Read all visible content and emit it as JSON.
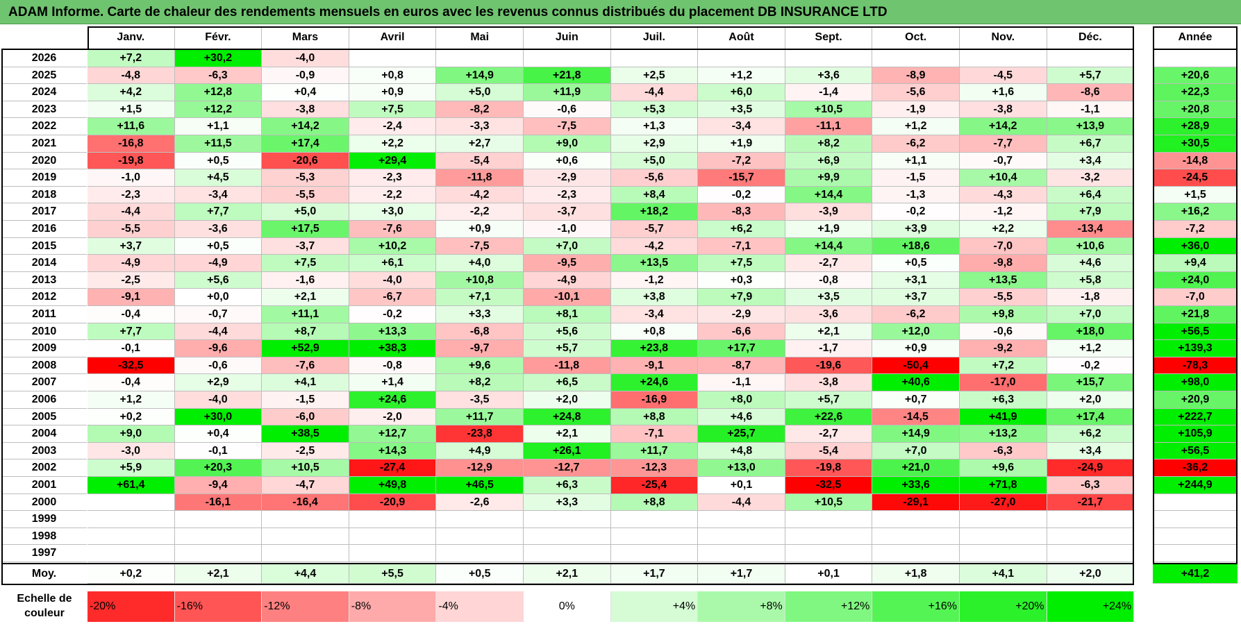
{
  "title": "ADAM Informe. Carte de chaleur des rendements mensuels en euros avec les revenus connus distribués du placement DB INSURANCE LTD",
  "chart_data": {
    "type": "heatmap",
    "title": "ADAM Informe. Carte de chaleur des rendements mensuels en euros avec les revenus connus distribués du placement DB INSURANCE LTD",
    "months": [
      "Janv.",
      "Févr.",
      "Mars",
      "Avril",
      "Mai",
      "Juin",
      "Juil.",
      "Août",
      "Sept.",
      "Oct.",
      "Nov.",
      "Déc."
    ],
    "year_header": "Année",
    "rows": [
      {
        "year": "2026",
        "values": [
          "+7,2",
          "+30,2",
          "-4,0",
          "",
          "",
          "",
          "",
          "",
          "",
          "",
          "",
          ""
        ],
        "annual": ""
      },
      {
        "year": "2025",
        "values": [
          "-4,8",
          "-6,3",
          "-0,9",
          "+0,8",
          "+14,9",
          "+21,8",
          "+2,5",
          "+1,2",
          "+3,6",
          "-8,9",
          "-4,5",
          "+5,7"
        ],
        "annual": "+20,6"
      },
      {
        "year": "2024",
        "values": [
          "+4,2",
          "+12,8",
          "+0,4",
          "+0,9",
          "+5,0",
          "+11,9",
          "-4,4",
          "+6,0",
          "-1,4",
          "-5,6",
          "+1,6",
          "-8,6"
        ],
        "annual": "+22,3"
      },
      {
        "year": "2023",
        "values": [
          "+1,5",
          "+12,2",
          "-3,8",
          "+7,5",
          "-8,2",
          "-0,6",
          "+5,3",
          "+3,5",
          "+10,5",
          "-1,9",
          "-3,8",
          "-1,1"
        ],
        "annual": "+20,8"
      },
      {
        "year": "2022",
        "values": [
          "+11,6",
          "+1,1",
          "+14,2",
          "-2,4",
          "-3,3",
          "-7,5",
          "+1,3",
          "-3,4",
          "-11,1",
          "+1,2",
          "+14,2",
          "+13,9"
        ],
        "annual": "+28,9"
      },
      {
        "year": "2021",
        "values": [
          "-16,8",
          "+11,5",
          "+17,4",
          "+2,2",
          "+2,7",
          "+9,0",
          "+2,9",
          "+1,9",
          "+8,2",
          "-6,2",
          "-7,7",
          "+6,7"
        ],
        "annual": "+30,5"
      },
      {
        "year": "2020",
        "values": [
          "-19,8",
          "+0,5",
          "-20,6",
          "+29,4",
          "-5,4",
          "+0,6",
          "+5,0",
          "-7,2",
          "+6,9",
          "+1,1",
          "-0,7",
          "+3,4"
        ],
        "annual": "-14,8"
      },
      {
        "year": "2019",
        "values": [
          "-1,0",
          "+4,5",
          "-5,3",
          "-2,3",
          "-11,8",
          "-2,9",
          "-5,6",
          "-15,7",
          "+9,9",
          "-1,5",
          "+10,4",
          "-3,2"
        ],
        "annual": "-24,5"
      },
      {
        "year": "2018",
        "values": [
          "-2,3",
          "-3,4",
          "-5,5",
          "-2,2",
          "-4,2",
          "-2,3",
          "+8,4",
          "-0,2",
          "+14,4",
          "-1,3",
          "-4,3",
          "+6,4"
        ],
        "annual": "+1,5"
      },
      {
        "year": "2017",
        "values": [
          "-4,4",
          "+7,7",
          "+5,0",
          "+3,0",
          "-2,2",
          "-3,7",
          "+18,2",
          "-8,3",
          "-3,9",
          "-0,2",
          "-1,2",
          "+7,9"
        ],
        "annual": "+16,2"
      },
      {
        "year": "2016",
        "values": [
          "-5,5",
          "-3,6",
          "+17,5",
          "-7,6",
          "+0,9",
          "-1,0",
          "-5,7",
          "+6,2",
          "+1,9",
          "+3,9",
          "+2,2",
          "-13,4"
        ],
        "annual": "-7,2"
      },
      {
        "year": "2015",
        "values": [
          "+3,7",
          "+0,5",
          "-3,7",
          "+10,2",
          "-7,5",
          "+7,0",
          "-4,2",
          "-7,1",
          "+14,4",
          "+18,6",
          "-7,0",
          "+10,6"
        ],
        "annual": "+36,0"
      },
      {
        "year": "2014",
        "values": [
          "-4,9",
          "-4,9",
          "+7,5",
          "+6,1",
          "+4,0",
          "-9,5",
          "+13,5",
          "+7,5",
          "-2,7",
          "+0,5",
          "-9,8",
          "+4,6"
        ],
        "annual": "+9,4"
      },
      {
        "year": "2013",
        "values": [
          "-2,5",
          "+5,6",
          "-1,6",
          "-4,0",
          "+10,8",
          "-4,9",
          "-1,2",
          "+0,3",
          "-0,8",
          "+3,1",
          "+13,5",
          "+5,8"
        ],
        "annual": "+24,0"
      },
      {
        "year": "2012",
        "values": [
          "-9,1",
          "+0,0",
          "+2,1",
          "-6,7",
          "+7,1",
          "-10,1",
          "+3,8",
          "+7,9",
          "+3,5",
          "+3,7",
          "-5,5",
          "-1,8"
        ],
        "annual": "-7,0"
      },
      {
        "year": "2011",
        "values": [
          "-0,4",
          "-0,7",
          "+11,1",
          "-0,2",
          "+3,3",
          "+8,1",
          "-3,4",
          "-2,9",
          "-3,6",
          "-6,2",
          "+9,8",
          "+7,0"
        ],
        "annual": "+21,8"
      },
      {
        "year": "2010",
        "values": [
          "+7,7",
          "-4,4",
          "+8,7",
          "+13,3",
          "-6,8",
          "+5,6",
          "+0,8",
          "-6,6",
          "+2,1",
          "+12,0",
          "-0,6",
          "+18,0"
        ],
        "annual": "+56,5"
      },
      {
        "year": "2009",
        "values": [
          "-0,1",
          "-9,6",
          "+52,9",
          "+38,3",
          "-9,7",
          "+5,7",
          "+23,8",
          "+17,7",
          "-1,7",
          "+0,9",
          "-9,2",
          "+1,2"
        ],
        "annual": "+139,3"
      },
      {
        "year": "2008",
        "values": [
          "-32,5",
          "-0,6",
          "-7,6",
          "-0,8",
          "+9,6",
          "-11,8",
          "-9,1",
          "-8,7",
          "-19,6",
          "-50,4",
          "+7,2",
          "-0,2"
        ],
        "annual": "-78,3"
      },
      {
        "year": "2007",
        "values": [
          "-0,4",
          "+2,9",
          "+4,1",
          "+1,4",
          "+8,2",
          "+6,5",
          "+24,6",
          "-1,1",
          "-3,8",
          "+40,6",
          "-17,0",
          "+15,7"
        ],
        "annual": "+98,0"
      },
      {
        "year": "2006",
        "values": [
          "+1,2",
          "-4,0",
          "-1,5",
          "+24,6",
          "-3,5",
          "+2,0",
          "-16,9",
          "+8,0",
          "+5,7",
          "+0,7",
          "+6,3",
          "+2,0"
        ],
        "annual": "+20,9"
      },
      {
        "year": "2005",
        "values": [
          "+0,2",
          "+30,0",
          "-6,0",
          "-2,0",
          "+11,7",
          "+24,8",
          "+8,8",
          "+4,6",
          "+22,6",
          "-14,5",
          "+41,9",
          "+17,4"
        ],
        "annual": "+222,7"
      },
      {
        "year": "2004",
        "values": [
          "+9,0",
          "+0,4",
          "+38,5",
          "+12,7",
          "-23,8",
          "+2,1",
          "-7,1",
          "+25,7",
          "-2,7",
          "+14,9",
          "+13,2",
          "+6,2"
        ],
        "annual": "+105,9"
      },
      {
        "year": "2003",
        "values": [
          "-3,0",
          "-0,1",
          "-2,5",
          "+14,3",
          "+4,9",
          "+26,1",
          "+11,7",
          "+4,8",
          "-5,4",
          "+7,0",
          "-6,3",
          "+3,4"
        ],
        "annual": "+56,5"
      },
      {
        "year": "2002",
        "values": [
          "+5,9",
          "+20,3",
          "+10,5",
          "-27,4",
          "-12,9",
          "-12,7",
          "-12,3",
          "+13,0",
          "-19,8",
          "+21,0",
          "+9,6",
          "-24,9"
        ],
        "annual": "-36,2"
      },
      {
        "year": "2001",
        "values": [
          "+61,4",
          "-9,4",
          "-4,7",
          "+49,8",
          "+46,5",
          "+6,3",
          "-25,4",
          "+0,1",
          "-32,5",
          "+33,6",
          "+71,8",
          "-6,3"
        ],
        "annual": "+244,9"
      },
      {
        "year": "2000",
        "values": [
          "",
          "-16,1",
          "-16,4",
          "-20,9",
          "-2,6",
          "+3,3",
          "+8,8",
          "-4,4",
          "+10,5",
          "-29,1",
          "-27,0",
          "-21,7"
        ],
        "annual": ""
      },
      {
        "year": "1999",
        "values": [
          "",
          "",
          "",
          "",
          "",
          "",
          "",
          "",
          "",
          "",
          "",
          ""
        ],
        "annual": ""
      },
      {
        "year": "1998",
        "values": [
          "",
          "",
          "",
          "",
          "",
          "",
          "",
          "",
          "",
          "",
          "",
          ""
        ],
        "annual": ""
      },
      {
        "year": "1997",
        "values": [
          "",
          "",
          "",
          "",
          "",
          "",
          "",
          "",
          "",
          "",
          "",
          ""
        ],
        "annual": ""
      }
    ],
    "average": {
      "label": "Moy.",
      "values": [
        "+0,2",
        "+2,1",
        "+4,4",
        "+5,5",
        "+0,5",
        "+2,1",
        "+1,7",
        "+1,7",
        "+0,1",
        "+1,8",
        "+4,1",
        "+2,0"
      ],
      "annual": "+41,2"
    },
    "color_scale": {
      "label": "Echelle de couleur",
      "steps": [
        {
          "label": "-20%",
          "value": -20
        },
        {
          "label": "-16%",
          "value": -16
        },
        {
          "label": "-12%",
          "value": -12
        },
        {
          "label": "-8%",
          "value": -8
        },
        {
          "label": "-4%",
          "value": -4
        },
        {
          "label": "0%",
          "value": 0
        },
        {
          "label": "+4%",
          "value": 4
        },
        {
          "label": "+8%",
          "value": 8
        },
        {
          "label": "+12%",
          "value": 12
        },
        {
          "label": "+16%",
          "value": 16
        },
        {
          "label": "+20%",
          "value": 20
        },
        {
          "label": "+24%",
          "value": 24
        }
      ]
    },
    "colors": {
      "neg": "#ff0000",
      "zero": "#ffffff",
      "pos": "#00ee00",
      "title_bg": "#6fc46f"
    }
  }
}
